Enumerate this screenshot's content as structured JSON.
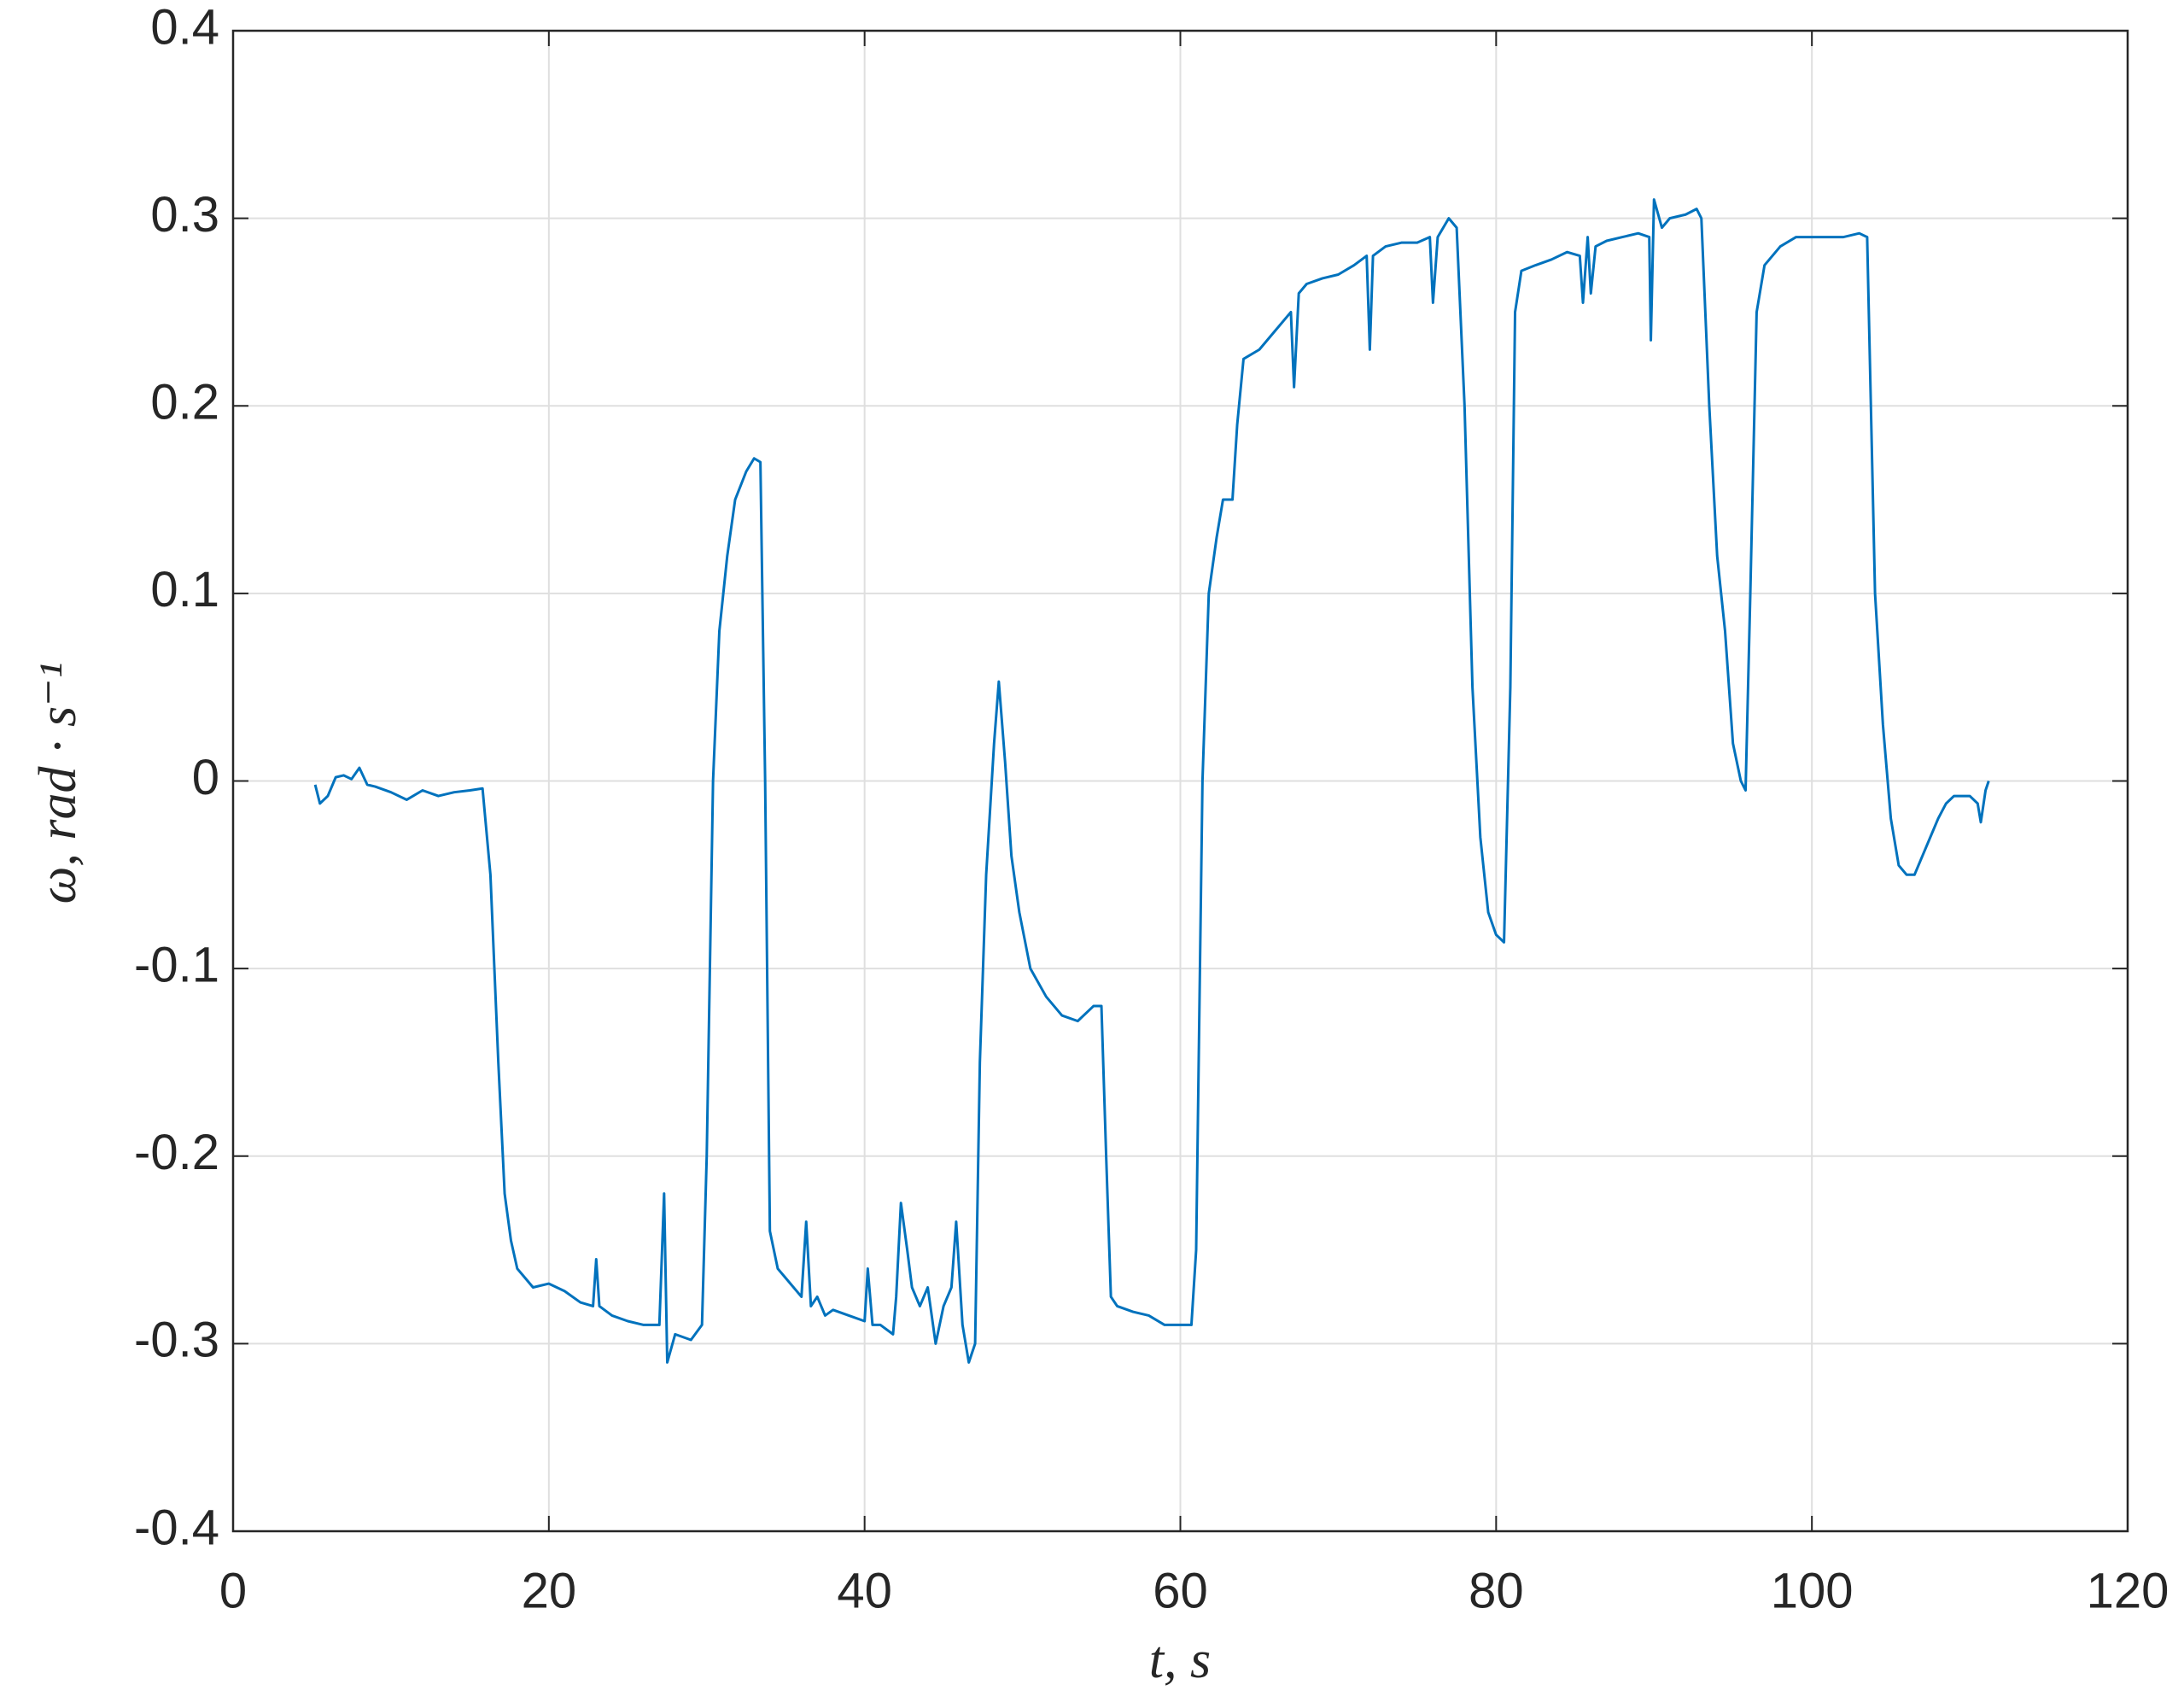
{
  "chart_data": {
    "type": "line",
    "x_label": "t, s",
    "y_label": "ω, rad · s⁻¹",
    "x": [
      5.2,
      5.5,
      6,
      6.5,
      7,
      7.5,
      8,
      8.5,
      9,
      10,
      11,
      12,
      13,
      14,
      15,
      15.8,
      16.3,
      16.8,
      17.2,
      17.6,
      18,
      18.5,
      19,
      20,
      21,
      22,
      22.8,
      23,
      23.2,
      24,
      25,
      26,
      27,
      27.3,
      27.5,
      28,
      29,
      29.7,
      30,
      30.4,
      30.8,
      31.3,
      31.8,
      32.5,
      33,
      33.4,
      33.7,
      34,
      34.5,
      35,
      36,
      36.3,
      36.6,
      37,
      37.5,
      38,
      39,
      40,
      40.2,
      40.5,
      41,
      41.8,
      42,
      42.3,
      42.7,
      43,
      43.5,
      44,
      44.5,
      45,
      45.5,
      45.8,
      46.2,
      46.6,
      47,
      47.3,
      47.7,
      48.2,
      48.5,
      48.9,
      49.3,
      49.8,
      50.5,
      51.5,
      52.5,
      53.5,
      54.5,
      55,
      55.3,
      55.6,
      56,
      57,
      58,
      59,
      60,
      60.7,
      61,
      61.4,
      61.8,
      62.3,
      62.7,
      63.3,
      63.6,
      64,
      65,
      66,
      67,
      67.2,
      67.5,
      68,
      69,
      70,
      71,
      71.8,
      72,
      72.2,
      73,
      74,
      75,
      75.8,
      76,
      76.3,
      77,
      77.5,
      78,
      78.5,
      79,
      79.5,
      80,
      80.5,
      80.9,
      81.2,
      81.6,
      82.5,
      83.5,
      84.5,
      85.3,
      85.5,
      85.8,
      86,
      86.3,
      87,
      88,
      89,
      89.7,
      89.8,
      90,
      90.5,
      91,
      92,
      92.7,
      93,
      93.5,
      94,
      94.5,
      95,
      95.5,
      95.8,
      96.1,
      96.5,
      97,
      98,
      99,
      100,
      101,
      102,
      103,
      103.5,
      104,
      104.5,
      105,
      105.5,
      106,
      106.5,
      107,
      107.5,
      108,
      108.5,
      109,
      110,
      110.5,
      110.7,
      111,
      111.2
    ],
    "series": [
      {
        "color": "#0072bd",
        "values": [
          -0.002,
          -0.012,
          -0.008,
          0.002,
          0.003,
          0.001,
          0.007,
          -0.002,
          -0.003,
          -0.006,
          -0.01,
          -0.005,
          -0.008,
          -0.006,
          -0.005,
          -0.004,
          -0.05,
          -0.15,
          -0.22,
          -0.245,
          -0.26,
          -0.265,
          -0.27,
          -0.268,
          -0.272,
          -0.278,
          -0.28,
          -0.255,
          -0.28,
          -0.285,
          -0.288,
          -0.29,
          -0.29,
          -0.22,
          -0.31,
          -0.295,
          -0.298,
          -0.29,
          -0.2,
          0,
          0.08,
          0.12,
          0.15,
          0.165,
          0.172,
          0.17,
          0,
          -0.24,
          -0.26,
          -0.265,
          -0.275,
          -0.235,
          -0.28,
          -0.275,
          -0.285,
          -0.282,
          -0.285,
          -0.288,
          -0.26,
          -0.29,
          -0.29,
          -0.295,
          -0.275,
          -0.225,
          -0.25,
          -0.27,
          -0.28,
          -0.27,
          -0.3,
          -0.28,
          -0.27,
          -0.235,
          -0.29,
          -0.31,
          -0.3,
          -0.15,
          -0.05,
          0.02,
          0.053,
          0.01,
          -0.04,
          -0.07,
          -0.1,
          -0.115,
          -0.125,
          -0.128,
          -0.12,
          -0.12,
          -0.2,
          -0.275,
          -0.28,
          -0.283,
          -0.285,
          -0.29,
          -0.29,
          -0.29,
          -0.25,
          0,
          0.1,
          0.13,
          0.15,
          0.15,
          0.19,
          0.225,
          0.23,
          0.24,
          0.25,
          0.21,
          0.26,
          0.265,
          0.268,
          0.27,
          0.275,
          0.28,
          0.23,
          0.28,
          0.285,
          0.287,
          0.287,
          0.29,
          0.255,
          0.29,
          0.3,
          0.295,
          0.2,
          0.05,
          -0.03,
          -0.07,
          -0.082,
          -0.086,
          0.05,
          0.25,
          0.272,
          0.275,
          0.278,
          0.282,
          0.28,
          0.255,
          0.29,
          0.26,
          0.285,
          0.288,
          0.29,
          0.292,
          0.29,
          0.235,
          0.31,
          0.295,
          0.3,
          0.302,
          0.305,
          0.3,
          0.2,
          0.12,
          0.08,
          0.02,
          0,
          -0.005,
          0.1,
          0.25,
          0.275,
          0.285,
          0.29,
          0.29,
          0.29,
          0.29,
          0.292,
          0.29,
          0.1,
          0.03,
          -0.02,
          -0.045,
          -0.05,
          -0.05,
          -0.04,
          -0.03,
          -0.02,
          -0.012,
          -0.008,
          -0.008,
          -0.012,
          -0.022,
          -0.005,
          0
        ]
      }
    ],
    "xlim": [
      0,
      120
    ],
    "xticks": [
      0,
      20,
      40,
      60,
      80,
      100,
      120
    ],
    "ylim": [
      -0.4,
      0.4
    ],
    "yticks": [
      -0.4,
      -0.3,
      -0.2,
      -0.1,
      0,
      0.1,
      0.2,
      0.3,
      0.4
    ],
    "grid": true
  }
}
